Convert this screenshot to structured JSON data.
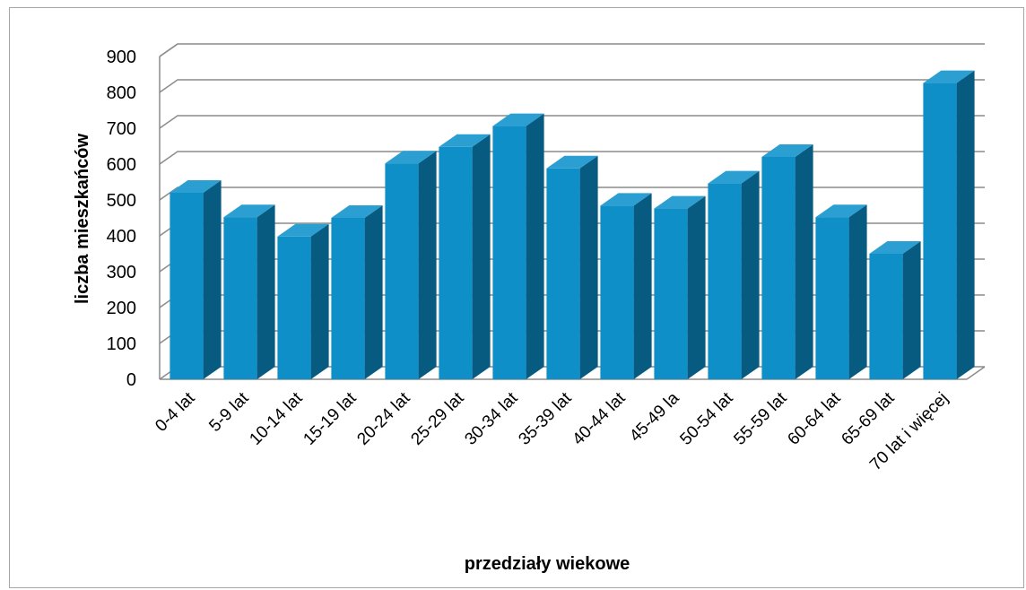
{
  "chart_data": {
    "type": "bar",
    "style": "3d-column",
    "categories": [
      "0-4 lat",
      "5-9 lat",
      "10-14 lat",
      "15-19 lat",
      "20-24 lat",
      "25-29 lat",
      "30-34 lat",
      "35-39 lat",
      "40-44 lat",
      "45-49 la",
      "50-54 lat",
      "55-59 lat",
      "60-64 lat",
      "65-69 lat",
      "70 lat i więcej"
    ],
    "values": [
      520,
      452,
      398,
      450,
      602,
      648,
      706,
      588,
      484,
      476,
      546,
      620,
      452,
      350,
      826
    ],
    "xlabel": "przedziały wiekowe",
    "ylabel": "liczba mieszkańców",
    "ylim": [
      0,
      900
    ],
    "yticks": [
      0,
      100,
      200,
      300,
      400,
      500,
      600,
      700,
      800,
      900
    ],
    "grid": true,
    "legend": "none",
    "colors": {
      "bar_front": "#0f8fc7",
      "bar_side": "#075a80",
      "bar_top": "#2b9fd1",
      "grid": "#8c8c8c"
    }
  }
}
